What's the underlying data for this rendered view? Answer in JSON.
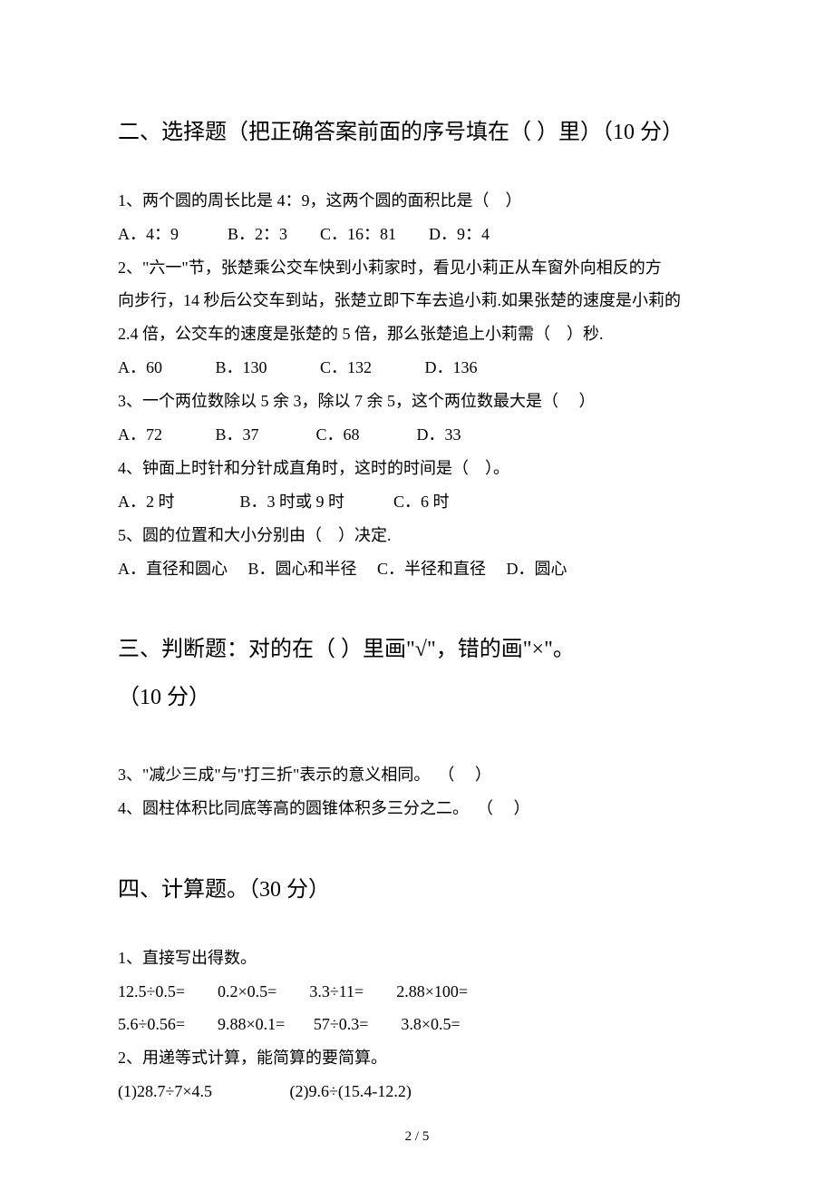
{
  "section2": {
    "title": "二、选择题（把正确答案前面的序号填在（  ）里）（10 分）",
    "q1": {
      "text": "1、两个圆的周长比是 4：9，这两个圆的面积比是（    ）",
      "options": "A．4：9            B．2：3        C．16：81        D．9：4"
    },
    "q2": {
      "line1": "2、\"六一\"节，张楚乘公交车快到小莉家时，看见小莉正从车窗外向相反的方",
      "line2": "向步行，14 秒后公交车到站，张楚立即下车去追小莉.如果张楚的速度是小莉的",
      "line3": "2.4 倍，公交车的速度是张楚的 5 倍，那么张楚追上小莉需（    ）秒.",
      "options": "A．60             B．130             C．132             D．136"
    },
    "q3": {
      "text": "3、一个两位数除以 5 余 3，除以 7 余 5，这个两位数最大是（     ）",
      "options": "A．72             B．37              C．68              D．33"
    },
    "q4": {
      "text": "4、钟面上时针和分针成直角时，这时的时间是（    ）。",
      "options": "A．2 时                B．3 时或 9 时            C．6 时"
    },
    "q5": {
      "text": "5、圆的位置和大小分别由（    ）决定.",
      "options": "A．直径和圆心     B．圆心和半径     C．半径和直径     D．圆心"
    }
  },
  "section3": {
    "title_line1": "三、判断题：对的在（  ）里画\"√\"，错的画\"×\"。",
    "title_line2": "（10 分）",
    "q3": "3、\"减少三成\"与\"打三折\"表示的意义相同。  （     ）",
    "q4": "4、圆柱体积比同底等高的圆锥体积多三分之二。  （     ）"
  },
  "section4": {
    "title": "四、计算题。（30 分）",
    "q1": {
      "text": "1、直接写出得数。",
      "row1": "12.5÷0.5=        0.2×0.5=        3.3÷11=        2.88×100=",
      "row2": "5.6÷0.56=        9.88×0.1=       57÷0.3=        3.8×0.5="
    },
    "q2": {
      "text": "2、用递等式计算，能简算的要简算。",
      "row1": "(1)28.7÷7×4.5                   (2)9.6÷(15.4-12.2)"
    }
  },
  "page_num": "2 / 5"
}
